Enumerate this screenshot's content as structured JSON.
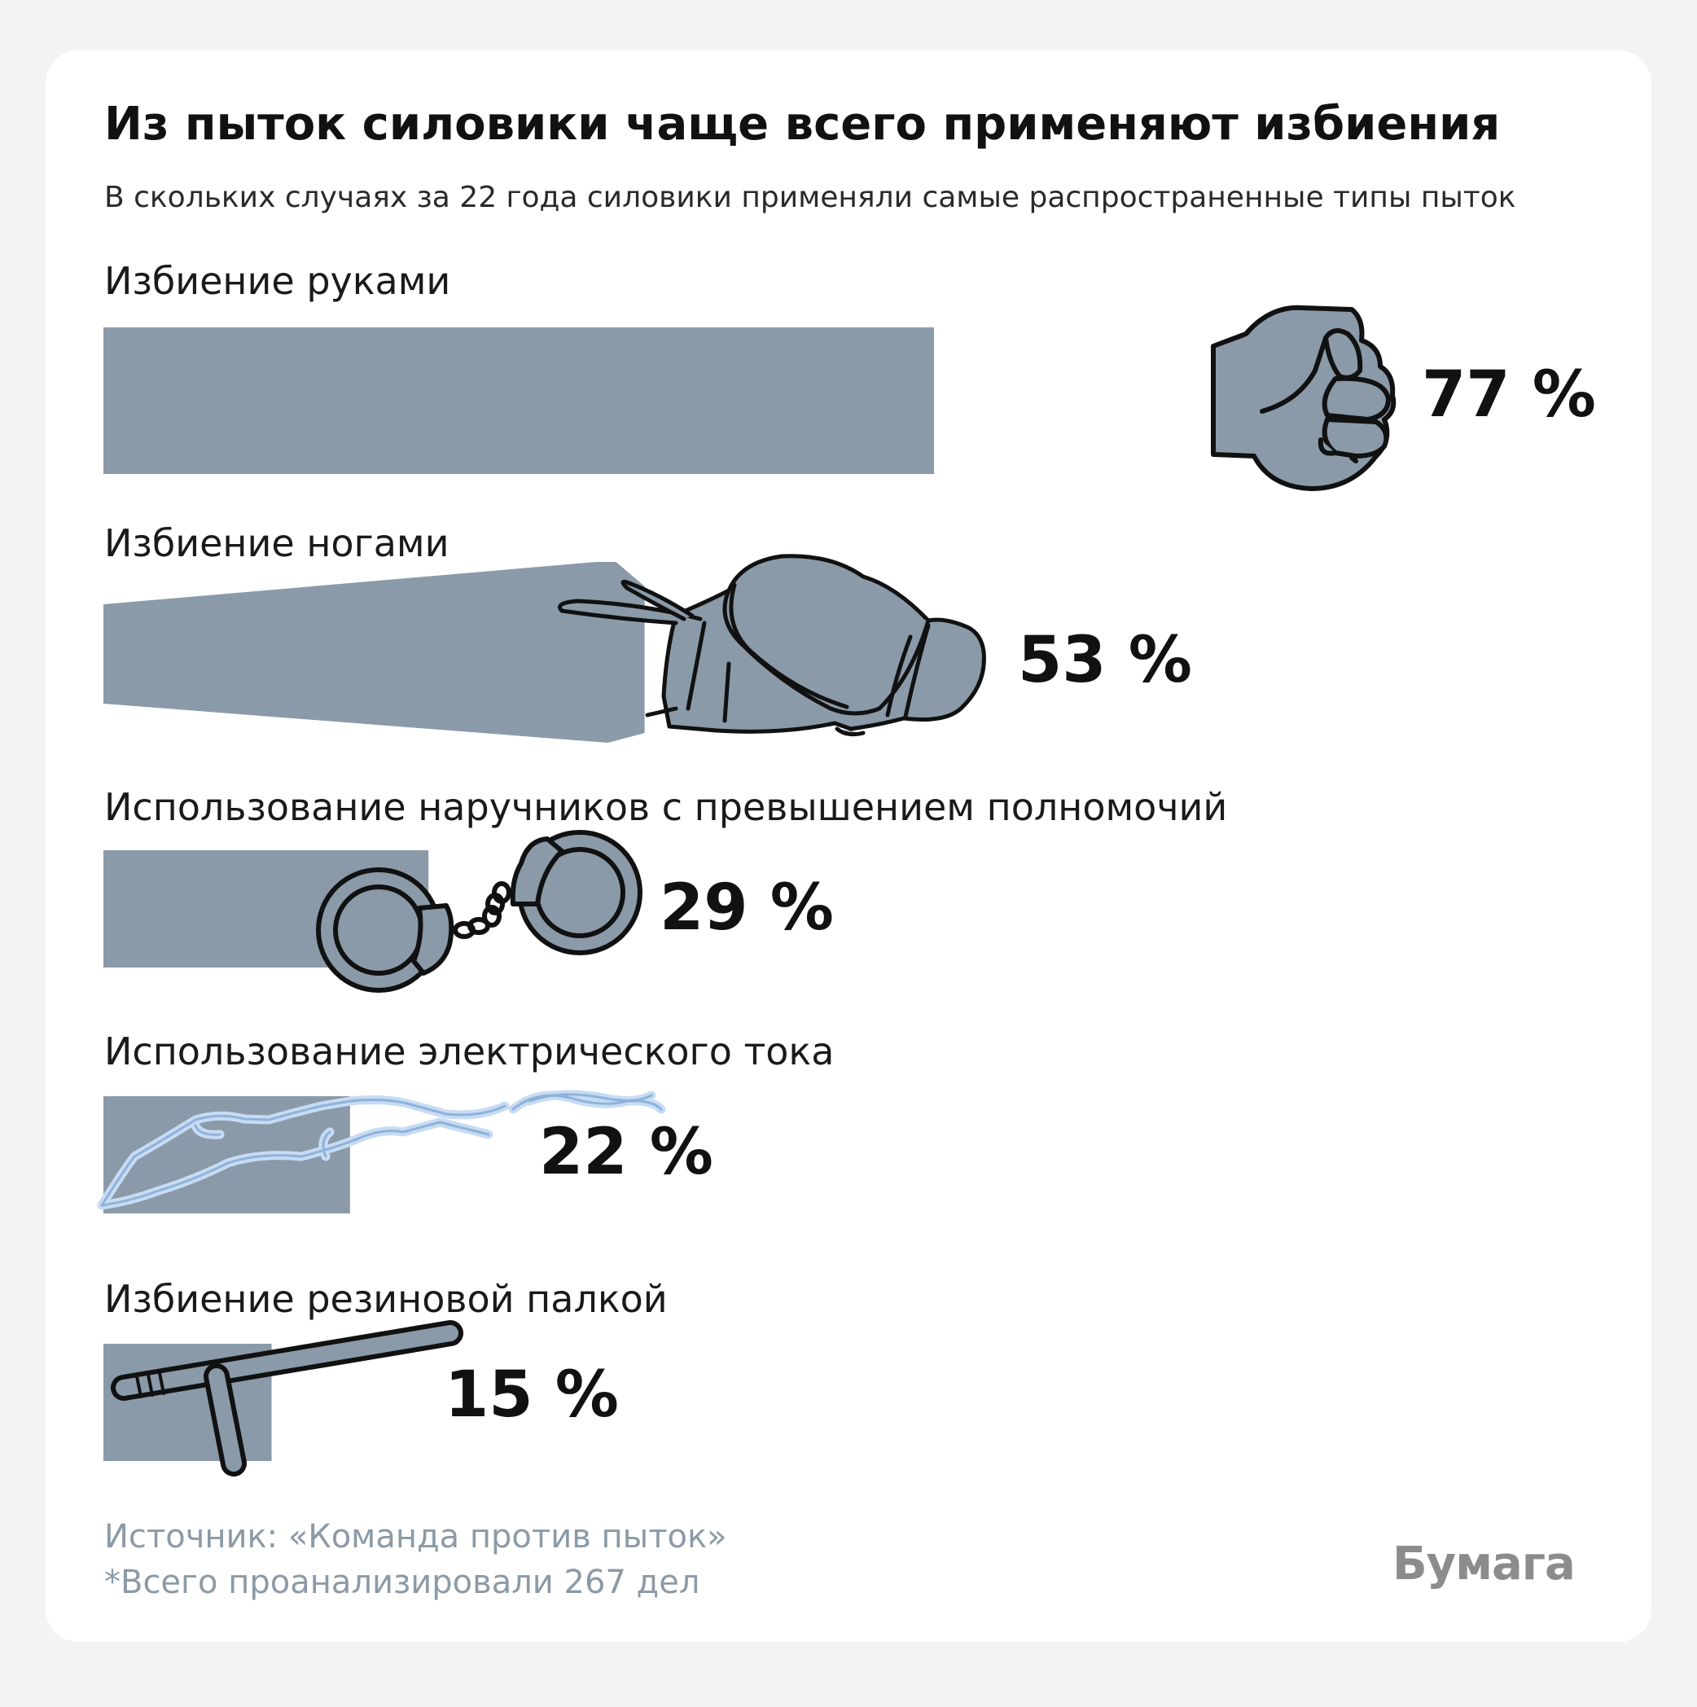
{
  "chart_data": {
    "type": "bar",
    "orientation": "horizontal",
    "title": "Из пыток силовики чаще всего применяют избиения",
    "subtitle": "В скольких случаях за 22 года силовики применяли самые распространенные типы пыток",
    "categories": [
      "Избиение руками",
      "Избиение ногами",
      "Использование наручников с превышением полномочий",
      "Использование электрического тока",
      "Избиение резиновой палкой"
    ],
    "values": [
      77,
      53,
      29,
      22,
      15
    ],
    "value_labels": [
      "77 %",
      "53 %",
      "29 %",
      "22 %",
      "15 %"
    ],
    "icons": [
      "fist-icon",
      "boxing-glove-icon",
      "handcuffs-icon",
      "electric-current-icon",
      "baton-icon"
    ],
    "xlim": [
      0,
      100
    ],
    "grid": false,
    "legend": "none",
    "colors": {
      "bar": "#8a9aa8",
      "current": "#a9c8ea",
      "icon_stroke": "#111111"
    }
  },
  "footer": {
    "source": "Источник: «Команда против пыток»",
    "note": "*Всего проанализировали 267 дел",
    "logo": "Бумага"
  }
}
